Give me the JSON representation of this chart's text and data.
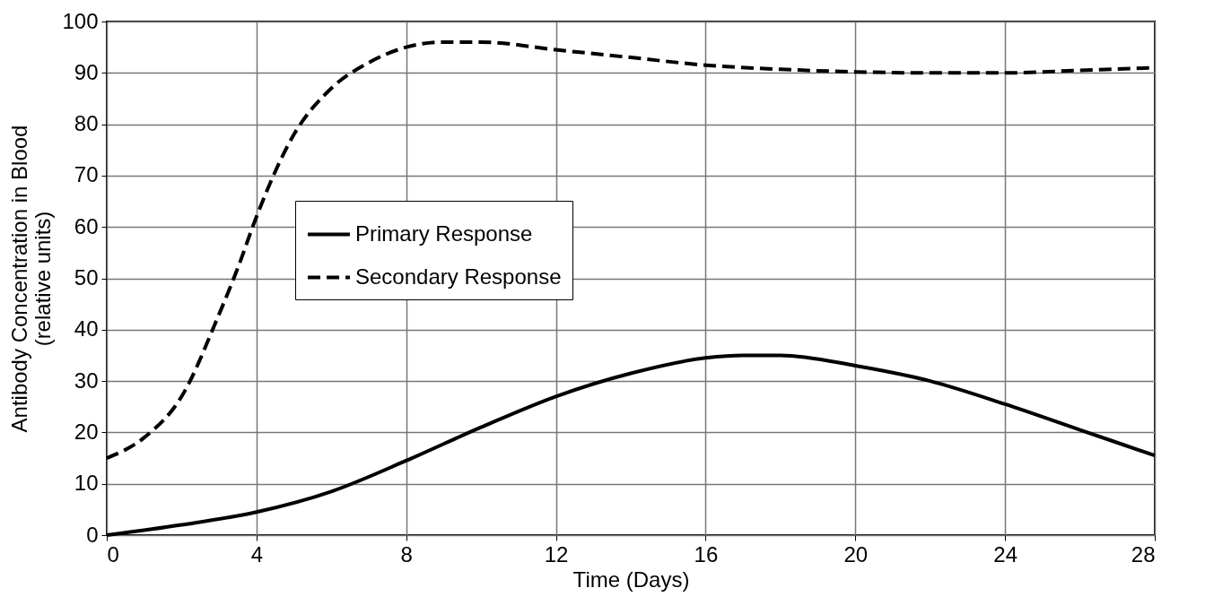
{
  "chart_data": {
    "type": "line",
    "xlabel": "Time (Days)",
    "ylabel": "Antibody Concentration in Blood (relative units)",
    "xlim": [
      0,
      28
    ],
    "xticks": [
      0,
      4,
      8,
      12,
      16,
      20,
      24,
      28
    ],
    "ylim": [
      0,
      100
    ],
    "yticks": [
      0,
      10,
      20,
      30,
      40,
      50,
      60,
      70,
      80,
      90,
      100
    ],
    "grid": true,
    "legend": "left",
    "series": [
      {
        "name": "Primary Response",
        "color": "#000000",
        "line_style": "solid",
        "x": [
          0,
          2,
          4,
          6,
          8,
          10,
          12,
          14,
          16,
          17,
          18,
          20,
          22,
          24,
          26,
          28
        ],
        "values": [
          0,
          2,
          4.5,
          8.5,
          14.5,
          21,
          27,
          31.5,
          34.5,
          35,
          35,
          33,
          30,
          25.5,
          20.5,
          15.5
        ]
      },
      {
        "name": "Secondary Response",
        "color": "#000000",
        "line_style": "dashed",
        "x": [
          0,
          1,
          2,
          3,
          3.5,
          4,
          5,
          6,
          7,
          8,
          9,
          10,
          12,
          14,
          16,
          18,
          20,
          22,
          24,
          26,
          28
        ],
        "values": [
          15,
          19,
          27,
          43,
          52,
          62,
          78,
          87,
          92,
          95,
          96,
          96,
          94.5,
          93,
          91.5,
          90.7,
          90.2,
          90,
          90,
          90.5,
          91
        ]
      }
    ]
  }
}
